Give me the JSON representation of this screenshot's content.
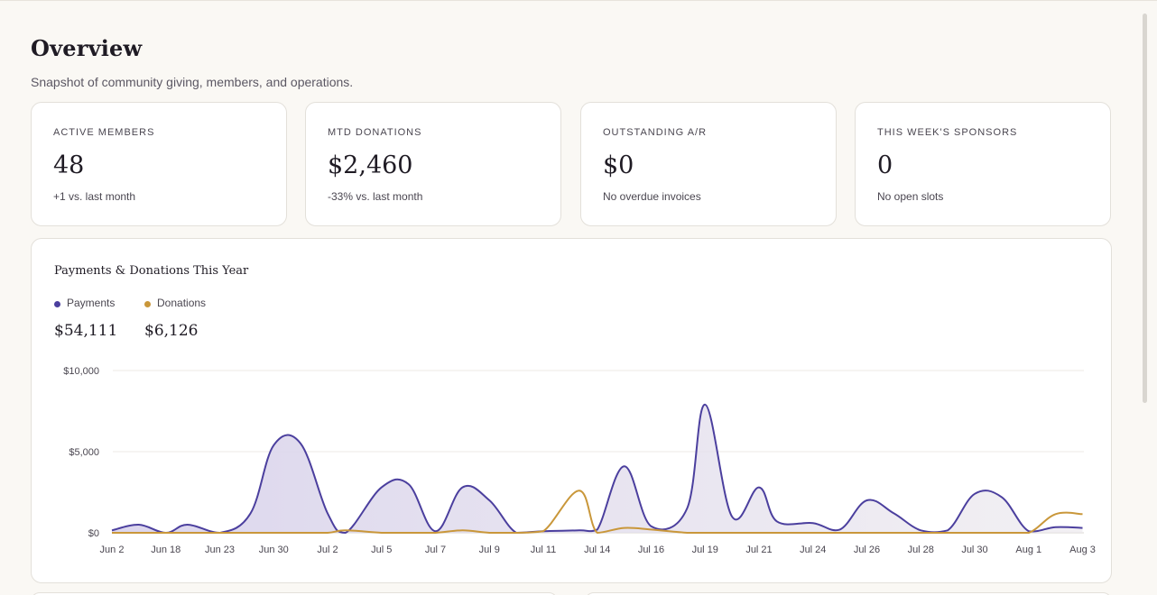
{
  "header": {
    "title": "Overview",
    "subtitle": "Snapshot of community giving, members, and operations."
  },
  "stats": [
    {
      "label": "ACTIVE MEMBERS",
      "value": "48",
      "note": "+1 vs. last month"
    },
    {
      "label": "MTD DONATIONS",
      "value": "$2,460",
      "note": "-33% vs. last month"
    },
    {
      "label": "OUTSTANDING A/R",
      "value": "$0",
      "note": "No overdue invoices"
    },
    {
      "label": "THIS WEEK'S SPONSORS",
      "value": "0",
      "note": "No open slots"
    }
  ],
  "chart": {
    "title": "Payments & Donations This Year",
    "legend": [
      {
        "name": "Payments",
        "total": "$54,111",
        "color": "#4b3f9e"
      },
      {
        "name": "Donations",
        "total": "$6,126",
        "color": "#c9973a"
      }
    ]
  },
  "chart_data": {
    "type": "area",
    "title": "Payments & Donations This Year",
    "ylim": [
      0,
      10000
    ],
    "yticks": [
      "$10,000",
      "$5,000",
      "$0"
    ],
    "grid": true,
    "legend_placement": "top-left",
    "x_tick_labels": [
      "Jun 2",
      "Jun 18",
      "Jun 23",
      "Jun 30",
      "Jul 2",
      "Jul 5",
      "Jul 7",
      "Jul 9",
      "Jul 11",
      "Jul 14",
      "Jul 16",
      "Jul 19",
      "Jul 21",
      "Jul 24",
      "Jul 26",
      "Jul 28",
      "Jul 30",
      "Aug 1",
      "Aug 3"
    ],
    "x": [
      "Jun 2",
      "Jun 10",
      "Jun 18",
      "Jun 20",
      "Jun 23",
      "Jun 27",
      "Jun 30",
      "Jul 1",
      "Jul 2",
      "Jul 3",
      "Jul 5",
      "Jul 6",
      "Jul 7",
      "Jul 8",
      "Jul 9",
      "Jul 10",
      "Jul 11",
      "Jul 13",
      "Jul 14",
      "Jul 15",
      "Jul 16",
      "Jul 18",
      "Jul 19",
      "Jul 20",
      "Jul 21",
      "Jul 22",
      "Jul 24",
      "Jul 25",
      "Jul 26",
      "Jul 27",
      "Jul 28",
      "Jul 29",
      "Jul 30",
      "Jul 31",
      "Aug 1",
      "Aug 2",
      "Aug 3"
    ],
    "series": [
      {
        "name": "Payments",
        "color": "#4b3f9e",
        "values": [
          150,
          500,
          0,
          500,
          0,
          1200,
          5400,
          5500,
          1200,
          0,
          2800,
          3000,
          100,
          2800,
          2000,
          0,
          100,
          150,
          200,
          4100,
          400,
          1500,
          7900,
          1000,
          2800,
          700,
          600,
          200,
          2000,
          1200,
          150,
          150,
          2400,
          2200,
          100,
          350,
          300
        ]
      },
      {
        "name": "Donations",
        "color": "#c9973a",
        "values": [
          0,
          0,
          0,
          0,
          0,
          0,
          0,
          0,
          0,
          150,
          0,
          0,
          0,
          150,
          0,
          0,
          100,
          2600,
          0,
          300,
          200,
          0,
          0,
          0,
          0,
          0,
          0,
          0,
          0,
          0,
          0,
          0,
          0,
          0,
          0,
          1150,
          1150
        ]
      }
    ]
  }
}
